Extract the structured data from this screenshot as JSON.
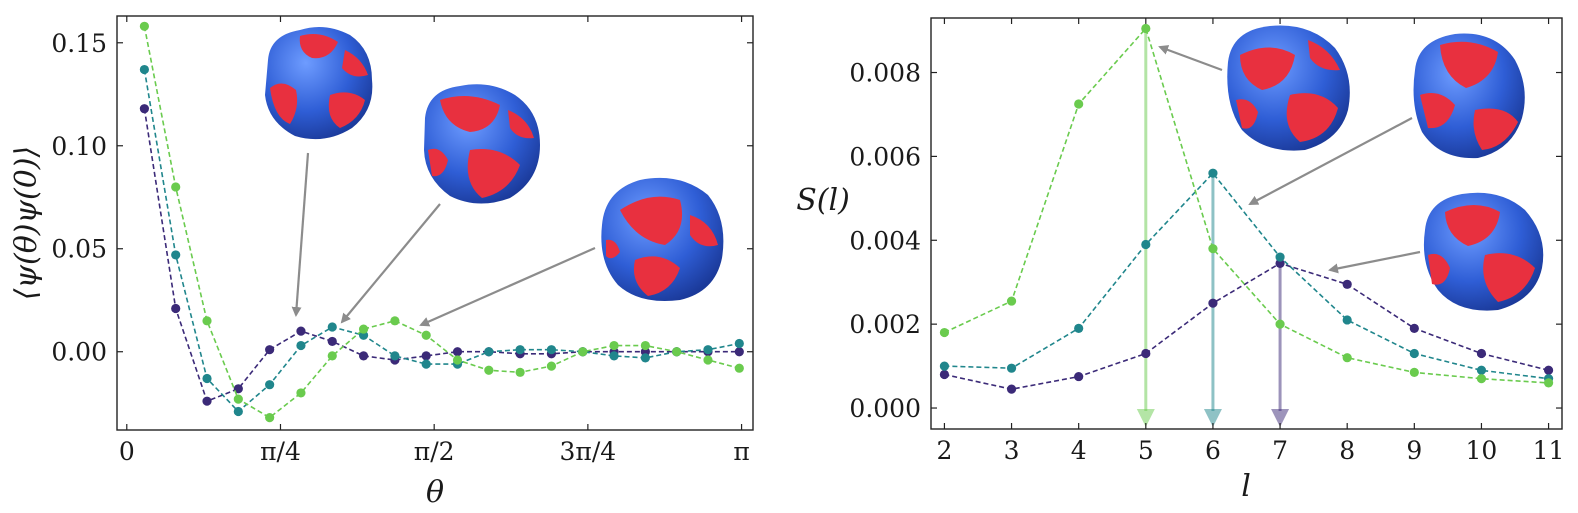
{
  "chart_data": [
    {
      "type": "line",
      "xlabel": "θ",
      "ylabel": "⟨ψ(θ)ψ(0)⟩",
      "xlim": [
        -0.05,
        3.2
      ],
      "ylim": [
        -0.038,
        0.163
      ],
      "xticks": [
        {
          "value": 0,
          "label": "0"
        },
        {
          "value": 0.7854,
          "label": "π/4"
        },
        {
          "value": 1.5708,
          "label": "π/2"
        },
        {
          "value": 2.3562,
          "label": "3π/4"
        },
        {
          "value": 3.1416,
          "label": "π"
        }
      ],
      "yticks": [
        {
          "value": 0.0,
          "label": "0.00"
        },
        {
          "value": 0.05,
          "label": "0.05"
        },
        {
          "value": 0.1,
          "label": "0.10"
        },
        {
          "value": 0.15,
          "label": "0.15"
        }
      ],
      "x": [
        0.09,
        0.25,
        0.41,
        0.57,
        0.73,
        0.89,
        1.05,
        1.21,
        1.37,
        1.53,
        1.69,
        1.85,
        2.01,
        2.17,
        2.33,
        2.49,
        2.65,
        2.81,
        2.97,
        3.13
      ],
      "series": [
        {
          "name": "series-purple",
          "color": "#3b2a78",
          "values": [
            0.118,
            0.021,
            -0.024,
            -0.018,
            0.001,
            0.01,
            0.005,
            -0.002,
            -0.004,
            -0.002,
            0.0,
            0.0,
            -0.001,
            -0.001,
            0.0,
            0.0,
            0.0,
            0.0,
            0.0,
            0.0
          ]
        },
        {
          "name": "series-teal",
          "color": "#20868c",
          "values": [
            0.137,
            0.047,
            -0.013,
            -0.029,
            -0.016,
            0.003,
            0.012,
            0.008,
            -0.002,
            -0.006,
            -0.006,
            0.0,
            0.001,
            0.001,
            0.0,
            -0.002,
            -0.003,
            0.0,
            0.001,
            0.004
          ]
        },
        {
          "name": "series-green",
          "color": "#6acb4e",
          "values": [
            0.158,
            0.08,
            0.015,
            -0.023,
            -0.032,
            -0.02,
            -0.002,
            0.011,
            0.015,
            0.008,
            -0.004,
            -0.009,
            -0.01,
            -0.007,
            0.0,
            0.003,
            0.003,
            0.0,
            -0.004,
            -0.008
          ]
        }
      ]
    },
    {
      "type": "line",
      "xlabel": "l",
      "ylabel": "S(l)",
      "xlim": [
        1.8,
        11.2
      ],
      "ylim": [
        -0.0005,
        0.0093
      ],
      "xticks": [
        {
          "value": 2,
          "label": "2"
        },
        {
          "value": 3,
          "label": "3"
        },
        {
          "value": 4,
          "label": "4"
        },
        {
          "value": 5,
          "label": "5"
        },
        {
          "value": 6,
          "label": "6"
        },
        {
          "value": 7,
          "label": "7"
        },
        {
          "value": 8,
          "label": "8"
        },
        {
          "value": 9,
          "label": "9"
        },
        {
          "value": 10,
          "label": "10"
        },
        {
          "value": 11,
          "label": "11"
        }
      ],
      "yticks": [
        {
          "value": 0.0,
          "label": "0.000"
        },
        {
          "value": 0.002,
          "label": "0.002"
        },
        {
          "value": 0.004,
          "label": "0.004"
        },
        {
          "value": 0.006,
          "label": "0.006"
        },
        {
          "value": 0.008,
          "label": "0.008"
        }
      ],
      "x": [
        2,
        3,
        4,
        5,
        6,
        7,
        8,
        9,
        10,
        11
      ],
      "series": [
        {
          "name": "series-purple",
          "color": "#3b2a78",
          "peak_l": 7,
          "values": [
            0.0008,
            0.00045,
            0.00075,
            0.0013,
            0.0025,
            0.00345,
            0.00295,
            0.0019,
            0.0013,
            0.0009
          ]
        },
        {
          "name": "series-teal",
          "color": "#20868c",
          "peak_l": 6,
          "values": [
            0.001,
            0.00095,
            0.0019,
            0.0039,
            0.0056,
            0.0036,
            0.0021,
            0.0013,
            0.0009,
            0.0007
          ]
        },
        {
          "name": "series-green",
          "color": "#6acb4e",
          "peak_l": 5,
          "values": [
            0.0018,
            0.00255,
            0.00725,
            0.00905,
            0.0038,
            0.002,
            0.0012,
            0.00085,
            0.0007,
            0.0006
          ]
        }
      ]
    }
  ]
}
